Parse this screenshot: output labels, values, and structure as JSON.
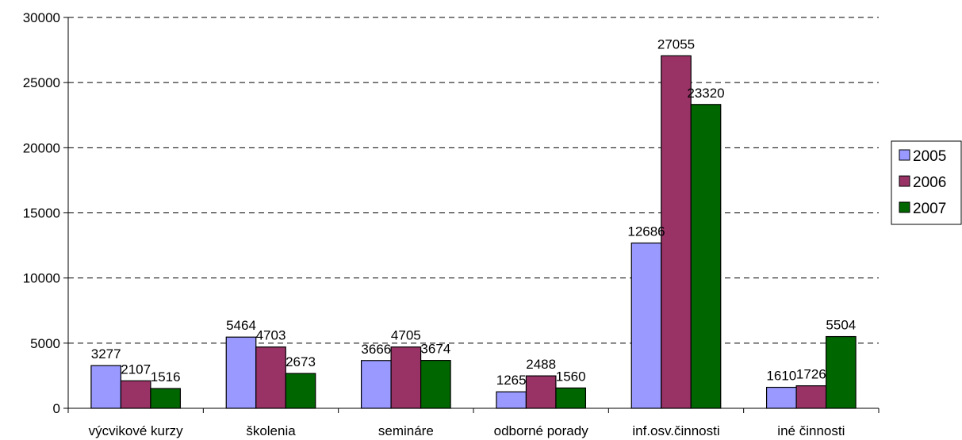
{
  "chart_data": {
    "type": "bar",
    "categories": [
      "výcvikové kurzy",
      "školenia",
      "semináre",
      "odborné porady",
      "inf.osv.činnosti",
      "iné činnosti"
    ],
    "series": [
      {
        "name": "2005",
        "color": "#9999ff",
        "values": [
          3277,
          5464,
          3666,
          1265,
          12686,
          1610
        ]
      },
      {
        "name": "2006",
        "color": "#993366",
        "values": [
          2107,
          4703,
          4705,
          2488,
          27055,
          1726
        ]
      },
      {
        "name": "2007",
        "color": "#006600",
        "values": [
          1516,
          2673,
          3674,
          1560,
          23320,
          5504
        ]
      }
    ],
    "ylim": [
      0,
      30000
    ],
    "yticks": [
      0,
      5000,
      10000,
      15000,
      20000,
      25000,
      30000
    ],
    "grid": true,
    "legend_position": "right",
    "title": "",
    "xlabel": "",
    "ylabel": ""
  }
}
